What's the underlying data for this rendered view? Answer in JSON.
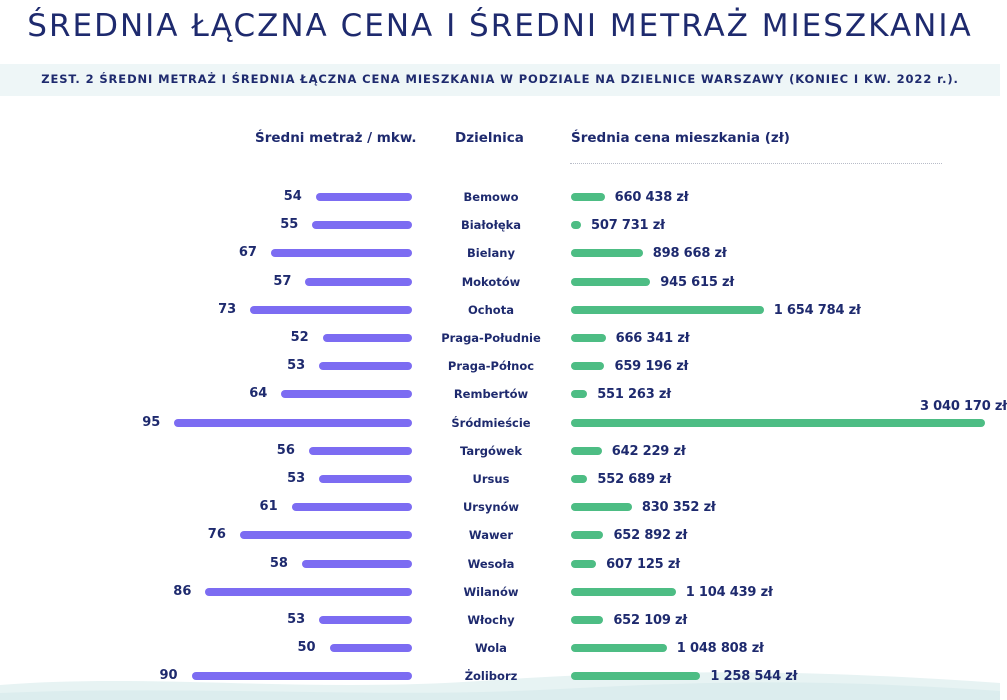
{
  "header": {
    "title": "ŚREDNIA ŁĄCZNA CENA I ŚREDNI METRAŻ MIESZKANIA",
    "subtitle": "ZEST. 2 ŚREDNI METRAŻ I ŚREDNIA ŁĄCZNA CENA MIESZKANIA W PODZIALE NA DZIELNICE WARSZAWY (KONIEC I KW. 2022 r.)."
  },
  "columns": {
    "area": "Średni metraż / mkw.",
    "district": "Dzielnica",
    "price": "Średnia cena mieszkania (zł)"
  },
  "colors": {
    "area_bar": "#7c6cf2",
    "price_bar": "#4dbd84",
    "text": "#1e2a6e"
  },
  "chart_data": {
    "type": "bar",
    "orientation": "horizontal",
    "categories": [
      "Bemowo",
      "Białołęka",
      "Bielany",
      "Mokotów",
      "Ochota",
      "Praga-Południe",
      "Praga-Północ",
      "Rembertów",
      "Śródmieście",
      "Targówek",
      "Ursus",
      "Ursynów",
      "Wawer",
      "Wesoła",
      "Wilanów",
      "Włochy",
      "Wola",
      "Żoliborz"
    ],
    "series": [
      {
        "name": "Średni metraż / mkw.",
        "values": [
          54,
          55,
          67,
          57,
          73,
          52,
          53,
          64,
          95,
          56,
          53,
          61,
          76,
          58,
          86,
          53,
          50,
          90
        ]
      },
      {
        "name": "Średnia cena mieszkania (zł)",
        "values": [
          660438,
          507731,
          898668,
          945615,
          1654784,
          666341,
          659196,
          551263,
          3040170,
          642229,
          552689,
          830352,
          652892,
          607125,
          1104439,
          652109,
          1048808,
          1258544
        ],
        "labels": [
          "660 438 zł",
          "507 731 zł",
          "898 668 zł",
          "945 615 zł",
          "1 654 784 zł",
          "666 341 zł",
          "659 196 zł",
          "551 263 zł",
          "3 040 170 zł",
          "642 229 zł",
          "552 689 zł",
          "830 352 zł",
          "652 892 zł",
          "607 125 zł",
          "1 104 439 zł",
          "652 109 zł",
          "1 048 808 zł",
          "1 258 544 zł"
        ]
      }
    ]
  }
}
